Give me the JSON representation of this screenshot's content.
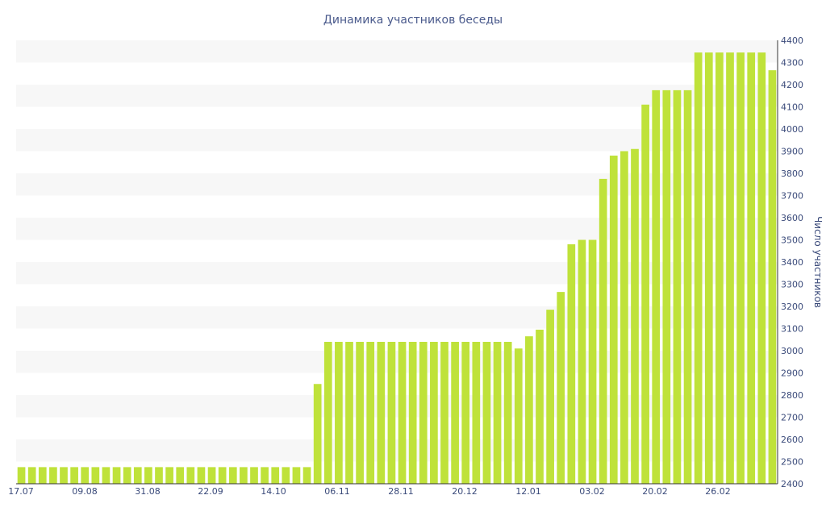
{
  "chart_data": {
    "type": "bar",
    "title": "Динамика участников беседы",
    "xlabel": "",
    "ylabel": "Число участников",
    "ylim": [
      2400,
      4400
    ],
    "y_ticks": [
      2400,
      2500,
      2600,
      2700,
      2800,
      2900,
      3000,
      3100,
      3200,
      3300,
      3400,
      3500,
      3600,
      3700,
      3800,
      3900,
      4000,
      4100,
      4200,
      4300,
      4400
    ],
    "x_tick_labels": [
      "17.07",
      "09.08",
      "31.08",
      "22.09",
      "14.10",
      "06.11",
      "28.11",
      "20.12",
      "12.01",
      "03.02",
      "20.02",
      "26.02"
    ],
    "grid": "alternating horizontal bands",
    "values": [
      2475,
      2475,
      2475,
      2475,
      2475,
      2475,
      2475,
      2475,
      2475,
      2475,
      2475,
      2475,
      2475,
      2475,
      2475,
      2475,
      2475,
      2475,
      2475,
      2475,
      2475,
      2475,
      2475,
      2475,
      2475,
      2475,
      2475,
      2475,
      2850,
      3040,
      3040,
      3040,
      3040,
      3040,
      3040,
      3040,
      3040,
      3040,
      3040,
      3040,
      3040,
      3040,
      3040,
      3040,
      3040,
      3040,
      3040,
      3010,
      3065,
      3095,
      3185,
      3265,
      3480,
      3500,
      3500,
      3775,
      3880,
      3900,
      3910,
      4110,
      4175,
      4175,
      4175,
      4175,
      4345,
      4345,
      4345,
      4345,
      4345,
      4345,
      4345,
      4265
    ]
  }
}
